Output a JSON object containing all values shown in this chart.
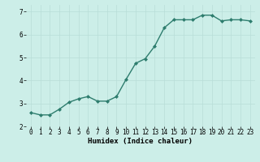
{
  "x": [
    0,
    1,
    2,
    3,
    4,
    5,
    6,
    7,
    8,
    9,
    10,
    11,
    12,
    13,
    14,
    15,
    16,
    17,
    18,
    19,
    20,
    21,
    22,
    23
  ],
  "y": [
    2.6,
    2.5,
    2.5,
    2.75,
    3.05,
    3.2,
    3.3,
    3.1,
    3.1,
    3.3,
    4.05,
    4.75,
    4.95,
    5.5,
    6.3,
    6.65,
    6.65,
    6.65,
    6.85,
    6.85,
    6.6,
    6.65,
    6.65,
    6.6
  ],
  "xlabel": "Humidex (Indice chaleur)",
  "xlim": [
    -0.5,
    23.5
  ],
  "ylim": [
    2.0,
    7.3
  ],
  "yticks": [
    2,
    3,
    4,
    5,
    6,
    7
  ],
  "xticks": [
    0,
    1,
    2,
    3,
    4,
    5,
    6,
    7,
    8,
    9,
    10,
    11,
    12,
    13,
    14,
    15,
    16,
    17,
    18,
    19,
    20,
    21,
    22,
    23
  ],
  "line_color": "#2e7d6e",
  "marker": "D",
  "marker_size": 2.0,
  "background_color": "#cceee8",
  "grid_color": "#b8ddd8",
  "tick_label_fontsize": 5.5,
  "xlabel_fontsize": 6.5,
  "line_width": 1.0
}
